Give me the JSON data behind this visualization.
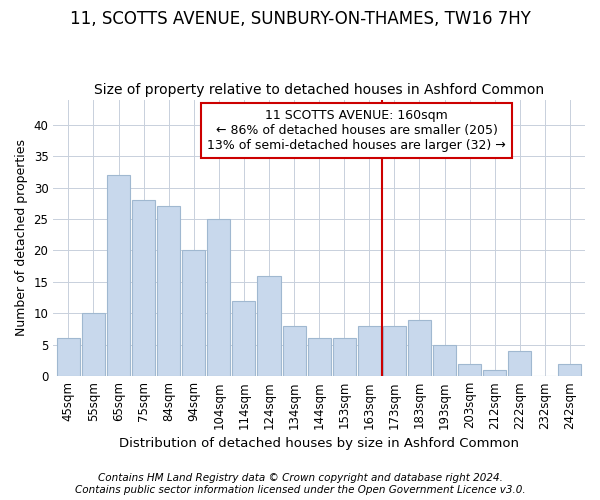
{
  "title1": "11, SCOTTS AVENUE, SUNBURY-ON-THAMES, TW16 7HY",
  "title2": "Size of property relative to detached houses in Ashford Common",
  "xlabel": "Distribution of detached houses by size in Ashford Common",
  "ylabel": "Number of detached properties",
  "categories": [
    "45sqm",
    "55sqm",
    "65sqm",
    "75sqm",
    "84sqm",
    "94sqm",
    "104sqm",
    "114sqm",
    "124sqm",
    "134sqm",
    "144sqm",
    "153sqm",
    "163sqm",
    "173sqm",
    "183sqm",
    "193sqm",
    "203sqm",
    "212sqm",
    "222sqm",
    "232sqm",
    "242sqm"
  ],
  "values": [
    6,
    10,
    32,
    28,
    27,
    20,
    25,
    12,
    16,
    8,
    6,
    6,
    8,
    8,
    9,
    5,
    2,
    1,
    4,
    0,
    2
  ],
  "bar_color": "#c8d8ec",
  "bar_edge_color": "#a0b8d0",
  "grid_color": "#c8d0dc",
  "vline_color": "#cc0000",
  "vline_x": 12.5,
  "annotation_text": "11 SCOTTS AVENUE: 160sqm\n← 86% of detached houses are smaller (205)\n13% of semi-detached houses are larger (32) →",
  "annotation_box_color": "#ffffff",
  "annotation_edge_color": "#cc0000",
  "footnote1": "Contains HM Land Registry data © Crown copyright and database right 2024.",
  "footnote2": "Contains public sector information licensed under the Open Government Licence v3.0.",
  "ylim": [
    0,
    44
  ],
  "yticks": [
    0,
    5,
    10,
    15,
    20,
    25,
    30,
    35,
    40
  ],
  "title1_fontsize": 12,
  "title2_fontsize": 10,
  "xlabel_fontsize": 9.5,
  "ylabel_fontsize": 9,
  "tick_fontsize": 8.5,
  "footnote_fontsize": 7.5,
  "annotation_fontsize": 9
}
